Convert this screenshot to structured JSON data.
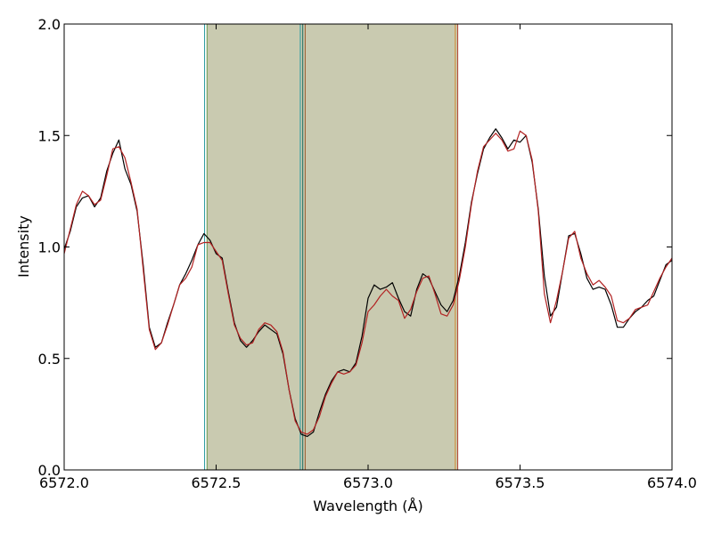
{
  "chart_data": {
    "type": "line",
    "xlabel": "Wavelength (Å)",
    "ylabel": "Intensity",
    "xlim": [
      6572.0,
      6574.0
    ],
    "ylim": [
      0.0,
      2.0
    ],
    "xticks": [
      6572.0,
      6572.5,
      6573.0,
      6573.5,
      6574.0
    ],
    "xtick_labels": [
      "6572.0",
      "6572.5",
      "6573.0",
      "6573.5",
      "6574.0"
    ],
    "yticks": [
      0.0,
      0.5,
      1.0,
      1.5,
      2.0
    ],
    "ytick_labels": [
      "0.0",
      "0.5",
      "1.0",
      "1.5",
      "2.0"
    ],
    "grid": false,
    "shaded_regions": [
      {
        "x0": 6572.47,
        "x1": 6572.785,
        "color": "#c9cab0"
      },
      {
        "x0": 6572.785,
        "x1": 6573.295,
        "color": "#c9cab0"
      }
    ],
    "vertical_lines": [
      {
        "x": 6572.462,
        "color": "#2a9aa0"
      },
      {
        "x": 6572.47,
        "color": "#6a9a50"
      },
      {
        "x": 6572.777,
        "color": "#2a9aa0"
      },
      {
        "x": 6572.785,
        "color": "#1a6a60"
      },
      {
        "x": 6572.793,
        "color": "#9a5a30"
      },
      {
        "x": 6573.287,
        "color": "#d08a30"
      },
      {
        "x": 6573.295,
        "color": "#b04030"
      }
    ],
    "series": [
      {
        "color": "#000000",
        "x": [
          6572.0,
          6572.02,
          6572.04,
          6572.06,
          6572.08,
          6572.1,
          6572.12,
          6572.14,
          6572.16,
          6572.18,
          6572.2,
          6572.22,
          6572.24,
          6572.26,
          6572.28,
          6572.3,
          6572.32,
          6572.34,
          6572.36,
          6572.38,
          6572.4,
          6572.42,
          6572.44,
          6572.46,
          6572.48,
          6572.5,
          6572.52,
          6572.54,
          6572.56,
          6572.58,
          6572.6,
          6572.62,
          6572.64,
          6572.66,
          6572.68,
          6572.7,
          6572.72,
          6572.74,
          6572.76,
          6572.78,
          6572.8,
          6572.82,
          6572.84,
          6572.86,
          6572.88,
          6572.9,
          6572.92,
          6572.94,
          6572.96,
          6572.98,
          6573.0,
          6573.02,
          6573.04,
          6573.06,
          6573.08,
          6573.1,
          6573.12,
          6573.14,
          6573.16,
          6573.18,
          6573.2,
          6573.22,
          6573.24,
          6573.26,
          6573.28,
          6573.3,
          6573.32,
          6573.34,
          6573.36,
          6573.38,
          6573.4,
          6573.42,
          6573.44,
          6573.46,
          6573.48,
          6573.5,
          6573.52,
          6573.54,
          6573.56,
          6573.58,
          6573.6,
          6573.62,
          6573.64,
          6573.66,
          6573.68,
          6573.7,
          6573.72,
          6573.74,
          6573.76,
          6573.78,
          6573.8,
          6573.82,
          6573.84,
          6573.86,
          6573.88,
          6573.9,
          6573.92,
          6573.94,
          6573.96,
          6573.98,
          6574.0
        ],
        "y": [
          0.99,
          1.07,
          1.18,
          1.22,
          1.23,
          1.18,
          1.22,
          1.34,
          1.42,
          1.48,
          1.35,
          1.28,
          1.16,
          0.92,
          0.64,
          0.55,
          0.57,
          0.66,
          0.74,
          0.83,
          0.88,
          0.94,
          1.01,
          1.06,
          1.03,
          0.97,
          0.95,
          0.8,
          0.66,
          0.58,
          0.55,
          0.58,
          0.62,
          0.65,
          0.63,
          0.61,
          0.52,
          0.36,
          0.23,
          0.16,
          0.15,
          0.17,
          0.26,
          0.34,
          0.4,
          0.44,
          0.45,
          0.44,
          0.48,
          0.6,
          0.77,
          0.83,
          0.81,
          0.82,
          0.84,
          0.77,
          0.71,
          0.69,
          0.81,
          0.88,
          0.86,
          0.8,
          0.74,
          0.71,
          0.76,
          0.87,
          1.02,
          1.2,
          1.33,
          1.44,
          1.49,
          1.53,
          1.49,
          1.44,
          1.48,
          1.47,
          1.5,
          1.38,
          1.17,
          0.87,
          0.69,
          0.73,
          0.89,
          1.05,
          1.06,
          0.97,
          0.86,
          0.81,
          0.82,
          0.81,
          0.74,
          0.64,
          0.64,
          0.68,
          0.71,
          0.73,
          0.76,
          0.78,
          0.85,
          0.92,
          0.94
        ]
      },
      {
        "color": "#b22222",
        "x": [
          6572.0,
          6572.02,
          6572.04,
          6572.06,
          6572.08,
          6572.1,
          6572.12,
          6572.14,
          6572.16,
          6572.18,
          6572.2,
          6572.22,
          6572.24,
          6572.26,
          6572.28,
          6572.3,
          6572.32,
          6572.34,
          6572.36,
          6572.38,
          6572.4,
          6572.42,
          6572.44,
          6572.46,
          6572.48,
          6572.5,
          6572.52,
          6572.54,
          6572.56,
          6572.58,
          6572.6,
          6572.62,
          6572.64,
          6572.66,
          6572.68,
          6572.7,
          6572.72,
          6572.74,
          6572.76,
          6572.78,
          6572.8,
          6572.82,
          6572.84,
          6572.86,
          6572.88,
          6572.9,
          6572.92,
          6572.94,
          6572.96,
          6572.98,
          6573.0,
          6573.02,
          6573.04,
          6573.06,
          6573.08,
          6573.1,
          6573.12,
          6573.14,
          6573.16,
          6573.18,
          6573.2,
          6573.22,
          6573.24,
          6573.26,
          6573.28,
          6573.3,
          6573.32,
          6573.34,
          6573.36,
          6573.38,
          6573.4,
          6573.42,
          6573.44,
          6573.46,
          6573.48,
          6573.5,
          6573.52,
          6573.54,
          6573.56,
          6573.58,
          6573.6,
          6573.62,
          6573.64,
          6573.66,
          6573.68,
          6573.7,
          6573.72,
          6573.74,
          6573.76,
          6573.78,
          6573.8,
          6573.82,
          6573.84,
          6573.86,
          6573.88,
          6573.9,
          6573.92,
          6573.94,
          6573.96,
          6573.98,
          6574.0
        ],
        "y": [
          0.97,
          1.08,
          1.19,
          1.25,
          1.23,
          1.19,
          1.21,
          1.32,
          1.44,
          1.45,
          1.4,
          1.29,
          1.17,
          0.9,
          0.63,
          0.54,
          0.57,
          0.65,
          0.74,
          0.83,
          0.86,
          0.91,
          1.01,
          1.02,
          1.02,
          0.98,
          0.94,
          0.79,
          0.65,
          0.59,
          0.56,
          0.57,
          0.63,
          0.66,
          0.65,
          0.62,
          0.53,
          0.36,
          0.22,
          0.17,
          0.16,
          0.18,
          0.24,
          0.33,
          0.39,
          0.44,
          0.43,
          0.44,
          0.47,
          0.57,
          0.71,
          0.74,
          0.78,
          0.81,
          0.78,
          0.76,
          0.68,
          0.72,
          0.8,
          0.86,
          0.87,
          0.79,
          0.7,
          0.69,
          0.74,
          0.85,
          1.0,
          1.19,
          1.34,
          1.45,
          1.48,
          1.51,
          1.48,
          1.43,
          1.44,
          1.52,
          1.5,
          1.39,
          1.16,
          0.79,
          0.66,
          0.76,
          0.89,
          1.04,
          1.07,
          0.95,
          0.88,
          0.83,
          0.85,
          0.82,
          0.78,
          0.67,
          0.66,
          0.68,
          0.72,
          0.73,
          0.74,
          0.8,
          0.86,
          0.91,
          0.95
        ]
      }
    ]
  }
}
